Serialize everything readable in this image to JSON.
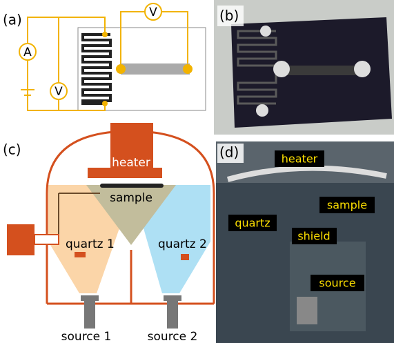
{
  "panels": {
    "a": {
      "label": "(a)",
      "ammeter": "A",
      "voltmeter_top": "V",
      "voltmeter_left": "V"
    },
    "b": {
      "label": "(b)"
    },
    "c": {
      "label": "(c)",
      "heater": "heater",
      "sample": "sample",
      "quartz1": "quartz 1",
      "quartz2": "quartz 2",
      "source1": "source 1",
      "source2": "source 2"
    },
    "d": {
      "label": "(d)",
      "heater": "heater",
      "sample": "sample",
      "quartz": "quartz",
      "shield": "shield",
      "source": "source"
    }
  }
}
